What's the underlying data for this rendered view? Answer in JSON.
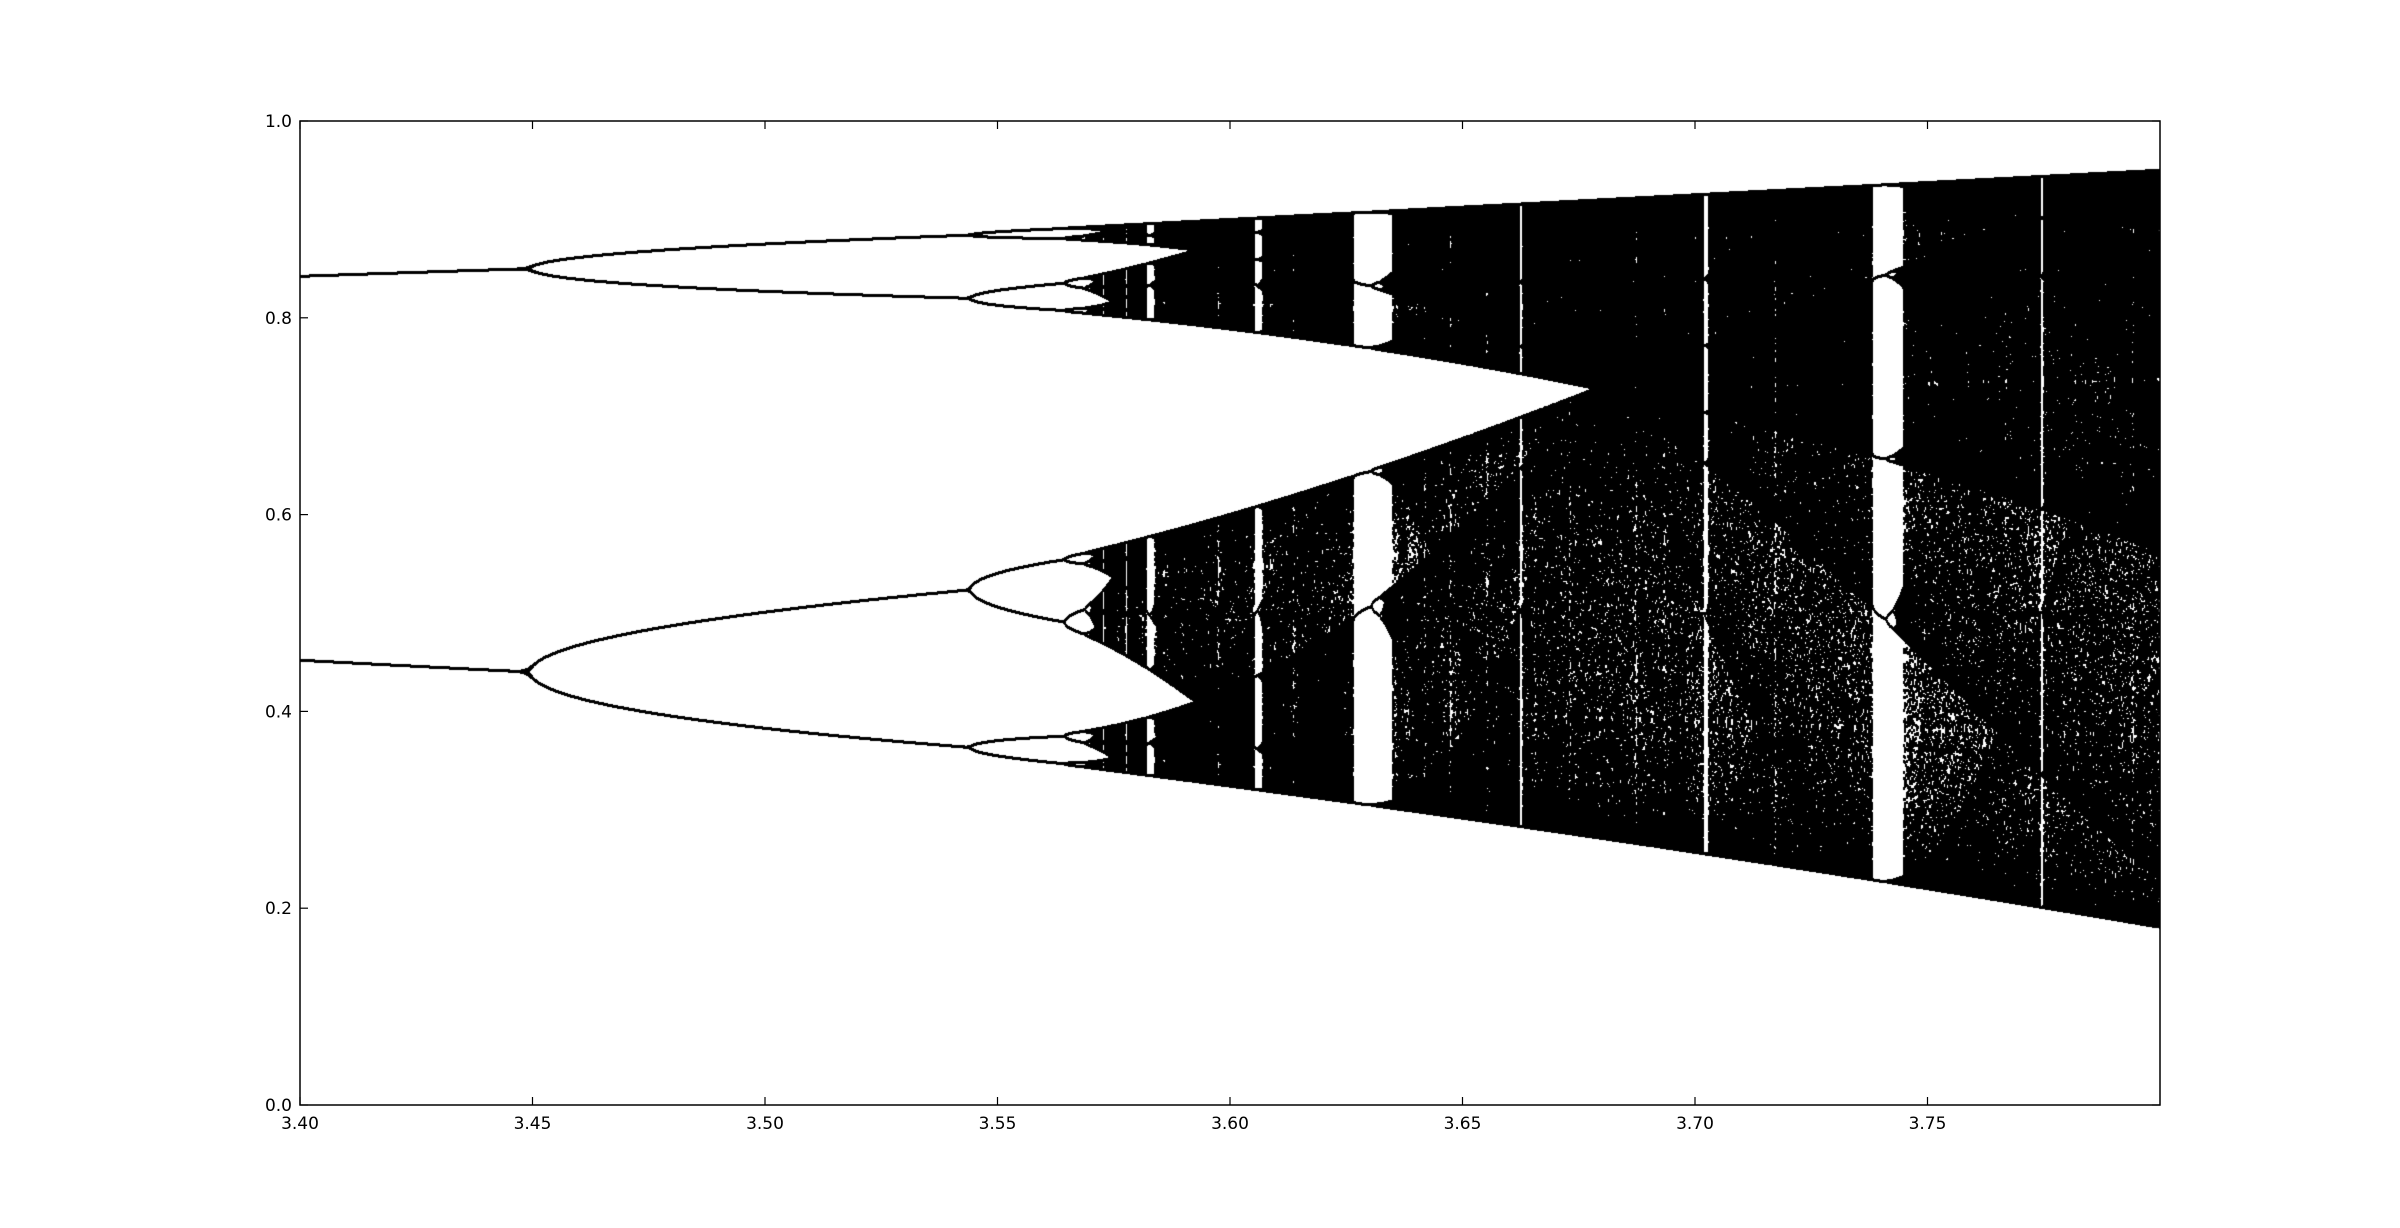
{
  "chart_data": {
    "type": "scatter",
    "title": "",
    "xlabel": "",
    "ylabel": "",
    "xlim": [
      3.4,
      3.8
    ],
    "ylim": [
      0.0,
      1.0
    ],
    "grid": false,
    "legend": "none",
    "x_ticks": [
      {
        "value": 3.4,
        "label": "3.40"
      },
      {
        "value": 3.45,
        "label": "3.45"
      },
      {
        "value": 3.5,
        "label": "3.50"
      },
      {
        "value": 3.55,
        "label": "3.55"
      },
      {
        "value": 3.6,
        "label": "3.60"
      },
      {
        "value": 3.65,
        "label": "3.65"
      },
      {
        "value": 3.7,
        "label": "3.70"
      },
      {
        "value": 3.75,
        "label": "3.75"
      }
    ],
    "y_ticks": [
      {
        "value": 0.0,
        "label": "0.0"
      },
      {
        "value": 0.2,
        "label": "0.2"
      },
      {
        "value": 0.4,
        "label": "0.4"
      },
      {
        "value": 0.6,
        "label": "0.6"
      },
      {
        "value": 0.8,
        "label": "0.8"
      },
      {
        "value": 1.0,
        "label": "1.0"
      }
    ],
    "series": [
      {
        "r_range": [
          3.4,
          3.8
        ],
        "color": "#000000",
        "key_values": [
          {
            "r": 3.4,
            "x": [
              0.452,
              0.842
            ]
          },
          {
            "r": 3.449,
            "x": [
              0.44,
              0.85
            ]
          },
          {
            "r": 3.544,
            "x": [
              0.363,
              0.522,
              0.819,
              0.884
            ]
          },
          {
            "r": 3.8,
            "x_range": [
              0.18,
              0.95
            ]
          }
        ]
      }
    ]
  }
}
